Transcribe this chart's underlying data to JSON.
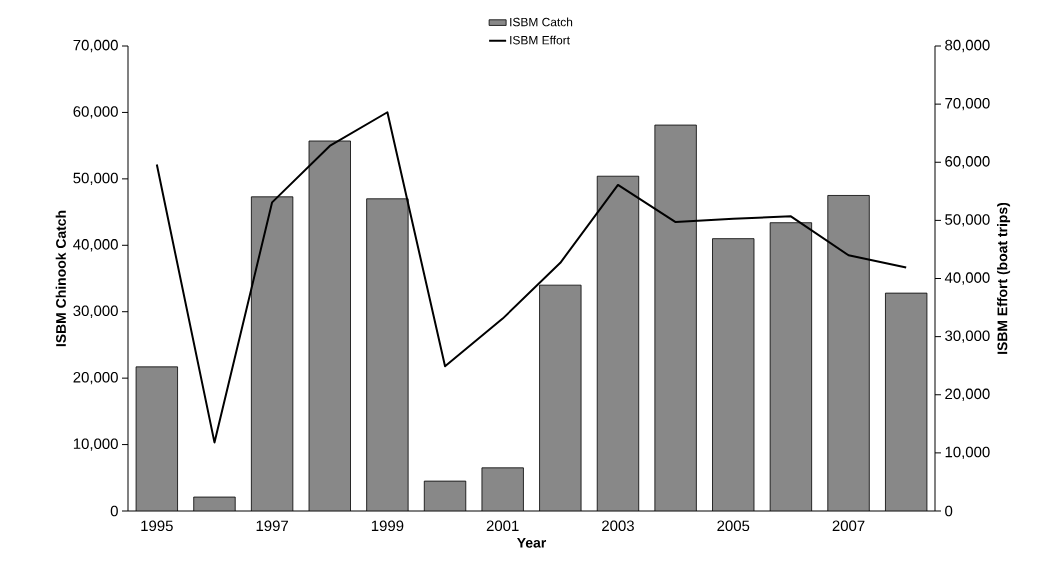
{
  "chart_data": {
    "type": "bar",
    "xlabel": "Year",
    "ylabel": "ISBM Chinook Catch",
    "y2label": "ISBM Effort (boat trips)",
    "categories": [
      "1995",
      null,
      "1997",
      null,
      "1999",
      null,
      "2001",
      null,
      "2003",
      null,
      "2005",
      null,
      "2007",
      null
    ],
    "series": [
      {
        "name": "ISBM Catch",
        "color": "#888888",
        "values": [
          21700,
          2100,
          47300,
          55700,
          47000,
          4500,
          6500,
          34000,
          50400,
          58100,
          41000,
          43400,
          47500,
          32800
        ]
      },
      {
        "name": "ISBM Effort",
        "type": "line",
        "axis": "y2",
        "color": "#000000",
        "values": [
          59600,
          11800,
          53100,
          62800,
          68600,
          24900,
          33100,
          42700,
          56100,
          49700,
          50300,
          50700,
          44000,
          41900
        ]
      }
    ],
    "ylim": [
      0,
      70000
    ],
    "yticks": [
      0,
      {
        "value": 10000,
        "label": "10,000"
      },
      {
        "value": 20000,
        "label": "20,000"
      },
      {
        "value": 30000,
        "label": "30,000"
      },
      {
        "value": 40000,
        "label": "40,000"
      },
      {
        "value": 50000,
        "label": "50,000"
      },
      {
        "value": 60000,
        "label": "60,000"
      },
      {
        "value": 70000,
        "label": "70,000"
      }
    ],
    "y2lim": [
      0,
      80000
    ],
    "y2ticks": [
      0,
      {
        "value": 10000,
        "label": "10,000"
      },
      {
        "value": 20000,
        "label": "20,000"
      },
      {
        "value": 30000,
        "label": "30,000"
      },
      {
        "value": 40000,
        "label": "40,000"
      },
      {
        "value": 50000,
        "label": "50,000"
      },
      {
        "value": 60000,
        "label": "60,000"
      },
      {
        "value": 70000,
        "label": "70,000"
      },
      {
        "value": 80000,
        "label": "80,000"
      }
    ],
    "grid": false,
    "legend": "top",
    "marker": "none",
    "line_style": "solid"
  }
}
